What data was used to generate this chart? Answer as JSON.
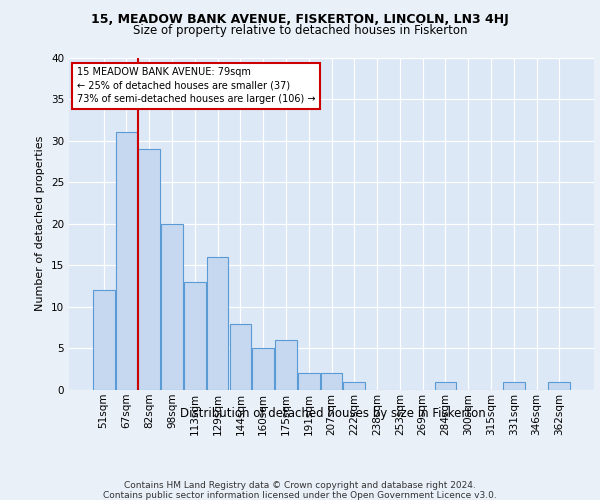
{
  "title1": "15, MEADOW BANK AVENUE, FISKERTON, LINCOLN, LN3 4HJ",
  "title2": "Size of property relative to detached houses in Fiskerton",
  "xlabel": "Distribution of detached houses by size in Fiskerton",
  "ylabel": "Number of detached properties",
  "categories": [
    "51sqm",
    "67sqm",
    "82sqm",
    "98sqm",
    "113sqm",
    "129sqm",
    "144sqm",
    "160sqm",
    "175sqm",
    "191sqm",
    "207sqm",
    "222sqm",
    "238sqm",
    "253sqm",
    "269sqm",
    "284sqm",
    "300sqm",
    "315sqm",
    "331sqm",
    "346sqm",
    "362sqm"
  ],
  "values": [
    12,
    31,
    29,
    20,
    13,
    16,
    8,
    5,
    6,
    2,
    2,
    1,
    0,
    0,
    0,
    1,
    0,
    0,
    1,
    0,
    1
  ],
  "bar_color": "#c5d8f0",
  "bar_edge_color": "#5b9bd5",
  "annotation_text": "15 MEADOW BANK AVENUE: 79sqm\n← 25% of detached houses are smaller (37)\n73% of semi-detached houses are larger (106) →",
  "annotation_box_edge": "#cc0000",
  "vline_color": "#cc0000",
  "vline_x": 1.5,
  "ylim": [
    0,
    40
  ],
  "yticks": [
    0,
    5,
    10,
    15,
    20,
    25,
    30,
    35,
    40
  ],
  "footer1": "Contains HM Land Registry data © Crown copyright and database right 2024.",
  "footer2": "Contains public sector information licensed under the Open Government Licence v3.0.",
  "bg_color": "#eaf0f8",
  "plot_bg_color": "#dce8f5",
  "title1_fontsize": 9,
  "title2_fontsize": 8.5,
  "xlabel_fontsize": 8.5,
  "ylabel_fontsize": 8,
  "tick_fontsize": 7.5,
  "footer_fontsize": 6.5
}
